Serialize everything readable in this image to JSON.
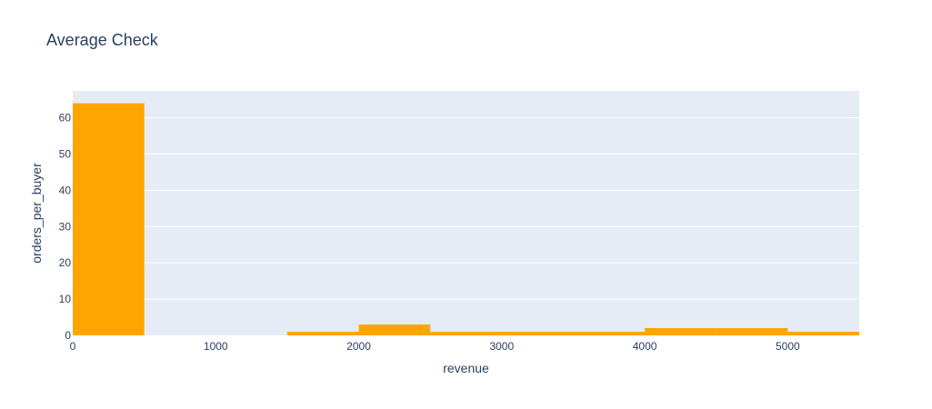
{
  "chart_data": {
    "type": "bar",
    "title": "Average Check",
    "xlabel": "revenue",
    "ylabel": "orders_per_buyer",
    "xlim": [
      0,
      5500
    ],
    "ylim": [
      0,
      67.4
    ],
    "x_ticks": [
      0,
      1000,
      2000,
      3000,
      4000,
      5000
    ],
    "y_ticks": [
      0,
      10,
      20,
      30,
      40,
      50,
      60
    ],
    "bin_width": 500,
    "bins": [
      {
        "x0": 0,
        "x1": 500,
        "value": 64
      },
      {
        "x0": 500,
        "x1": 1000,
        "value": 0
      },
      {
        "x0": 1000,
        "x1": 1500,
        "value": 0
      },
      {
        "x0": 1500,
        "x1": 2000,
        "value": 1
      },
      {
        "x0": 2000,
        "x1": 2500,
        "value": 3
      },
      {
        "x0": 2500,
        "x1": 3000,
        "value": 1
      },
      {
        "x0": 3000,
        "x1": 3500,
        "value": 1
      },
      {
        "x0": 3500,
        "x1": 4000,
        "value": 1
      },
      {
        "x0": 4000,
        "x1": 4500,
        "value": 2
      },
      {
        "x0": 4500,
        "x1": 5000,
        "value": 2
      },
      {
        "x0": 5000,
        "x1": 5500,
        "value": 1
      }
    ],
    "grid": true,
    "colors": {
      "bar": "#FFA500",
      "plot_bg": "#E5ECF6",
      "grid": "#FFFFFF",
      "text": "#2a3f5f"
    }
  }
}
